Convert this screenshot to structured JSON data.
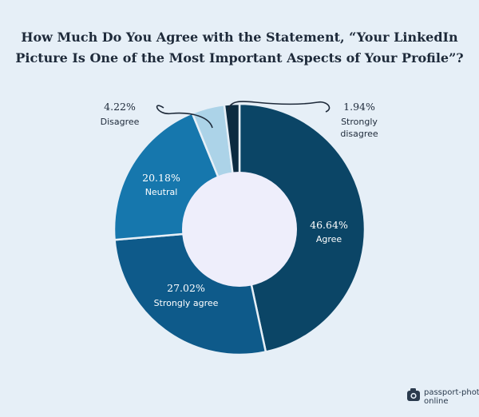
{
  "chart_data": {
    "type": "pie",
    "title": "How Much Do You Agree with the Statement, “Your LinkedIn Picture Is One of the Most Important Aspects of Your Profile”?",
    "slices": [
      {
        "label": "Agree",
        "value": 46.64,
        "value_text": "46.64%",
        "color": "#0b4566"
      },
      {
        "label": "Strongly agree",
        "value": 27.02,
        "value_text": "27.02%",
        "color": "#0e5a8a"
      },
      {
        "label": "Neutral",
        "value": 20.18,
        "value_text": "20.18%",
        "color": "#1677ad"
      },
      {
        "label": "Disagree",
        "value": 4.22,
        "value_text": "4.22%",
        "color": "#acd3e8"
      },
      {
        "label": "Strongly disagree",
        "value": 1.94,
        "value_text": "1.94%",
        "color": "#0c2b40"
      }
    ],
    "hole_color": "#eeeefb"
  },
  "title_lines": [
    "How Much Do You Agree with the Statement, “Your LinkedIn",
    "Picture Is One of the Most Important Aspects of Your Profile”?"
  ],
  "watermark": {
    "line1": "passport-photo",
    "line2": "online",
    "icon": "camera-icon"
  }
}
